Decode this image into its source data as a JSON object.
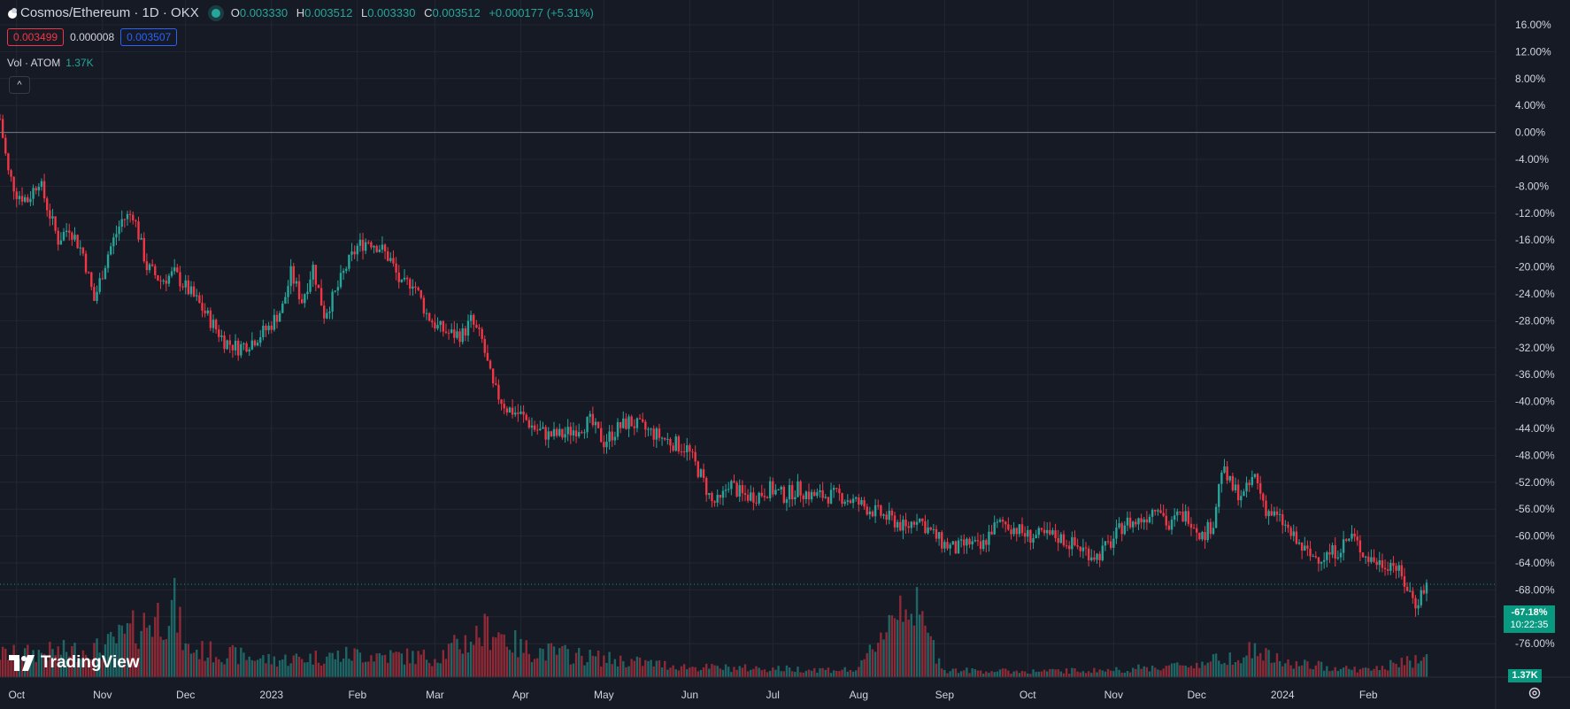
{
  "header": {
    "title": "Cosmos/Ethereum · 1D · OKX",
    "ohlc": [
      {
        "key": "O",
        "value": "0.003330"
      },
      {
        "key": "H",
        "value": "0.003512"
      },
      {
        "key": "L",
        "value": "0.003330"
      },
      {
        "key": "C",
        "value": "0.003512"
      }
    ],
    "change": "+0.000177 (+5.31%)",
    "sell_price": "0.003499",
    "spread": "0.000008",
    "buy_price": "0.003507",
    "volume_label": "Vol · ATOM",
    "volume_value": "1.37K",
    "collapse_symbol": "^"
  },
  "branding": {
    "logo_text": "TradingView"
  },
  "price_tag": {
    "percent": "-67.18%",
    "countdown": "10:22:35"
  },
  "volume_tag": "1.37K",
  "colors": {
    "background": "#161a25",
    "grid": "#232733",
    "up": "#26a69a",
    "down": "#f23645",
    "tag": "#089981"
  },
  "chart_data": {
    "type": "candlestick",
    "y_axis": {
      "scale": "percent",
      "range": [
        -76,
        18
      ],
      "tick_values": [
        16,
        12,
        8,
        4,
        0,
        -4,
        -8,
        -12,
        -16,
        -20,
        -24,
        -28,
        -32,
        -36,
        -40,
        -44,
        -48,
        -52,
        -56,
        -60,
        -64,
        -68,
        -72,
        -76
      ],
      "tick_labels": [
        "16.00%",
        "12.00%",
        "8.00%",
        "4.00%",
        "0.00%",
        "-4.00%",
        "-8.00%",
        "-12.00%",
        "-16.00%",
        "-20.00%",
        "-24.00%",
        "-28.00%",
        "-32.00%",
        "-36.00%",
        "-40.00%",
        "-44.00%",
        "-48.00%",
        "-52.00%",
        "-56.00%",
        "-60.00%",
        "-64.00%",
        "-68.00%",
        "-72.00%",
        "-76.00%"
      ]
    },
    "x_axis": {
      "start": "2022-09-25",
      "end": "2024-02-22",
      "tick_dates": [
        "2022-10-01",
        "2022-11-01",
        "2022-12-01",
        "2023-01-01",
        "2023-02-01",
        "2023-03-01",
        "2023-04-01",
        "2023-05-01",
        "2023-06-01",
        "2023-07-01",
        "2023-08-01",
        "2023-09-01",
        "2023-10-01",
        "2023-11-01",
        "2023-12-01",
        "2024-01-01",
        "2024-02-01"
      ],
      "tick_labels": [
        "Oct",
        "Nov",
        "Dec",
        "2023",
        "Feb",
        "Mar",
        "Apr",
        "May",
        "Jun",
        "Jul",
        "Aug",
        "Sep",
        "Oct",
        "Nov",
        "Dec",
        "2024",
        "Feb"
      ]
    },
    "series": [
      {
        "type": "close",
        "unit": "percent",
        "points": [
          [
            "2022-09-25",
            2
          ],
          [
            "2022-09-28",
            -6
          ],
          [
            "2022-10-01",
            -9
          ],
          [
            "2022-10-05",
            -10
          ],
          [
            "2022-10-09",
            -7
          ],
          [
            "2022-10-12",
            -11
          ],
          [
            "2022-10-16",
            -16
          ],
          [
            "2022-10-20",
            -14
          ],
          [
            "2022-10-25",
            -18
          ],
          [
            "2022-10-29",
            -25
          ],
          [
            "2022-11-03",
            -18
          ],
          [
            "2022-11-08",
            -13
          ],
          [
            "2022-11-12",
            -12
          ],
          [
            "2022-11-17",
            -20
          ],
          [
            "2022-11-22",
            -22
          ],
          [
            "2022-11-27",
            -21
          ],
          [
            "2022-12-01",
            -23
          ],
          [
            "2022-12-05",
            -25
          ],
          [
            "2022-12-10",
            -28
          ],
          [
            "2022-12-15",
            -31
          ],
          [
            "2022-12-20",
            -32
          ],
          [
            "2022-12-25",
            -31
          ],
          [
            "2022-12-31",
            -29
          ],
          [
            "2023-01-05",
            -26
          ],
          [
            "2023-01-08",
            -21
          ],
          [
            "2023-01-12",
            -25
          ],
          [
            "2023-01-16",
            -20
          ],
          [
            "2023-01-20",
            -27
          ],
          [
            "2023-01-24",
            -24
          ],
          [
            "2023-01-28",
            -20
          ],
          [
            "2023-02-01",
            -17
          ],
          [
            "2023-02-05",
            -16
          ],
          [
            "2023-02-09",
            -17
          ],
          [
            "2023-02-13",
            -19
          ],
          [
            "2023-02-17",
            -23
          ],
          [
            "2023-02-21",
            -22
          ],
          [
            "2023-02-26",
            -27
          ],
          [
            "2023-03-02",
            -29
          ],
          [
            "2023-03-07",
            -30
          ],
          [
            "2023-03-11",
            -30
          ],
          [
            "2023-03-14",
            -28
          ],
          [
            "2023-03-18",
            -31
          ],
          [
            "2023-03-22",
            -38
          ],
          [
            "2023-03-27",
            -41
          ],
          [
            "2023-04-01",
            -42
          ],
          [
            "2023-04-06",
            -44
          ],
          [
            "2023-04-11",
            -45
          ],
          [
            "2023-04-16",
            -45
          ],
          [
            "2023-04-21",
            -44
          ],
          [
            "2023-04-26",
            -43
          ],
          [
            "2023-05-01",
            -46
          ],
          [
            "2023-05-06",
            -44
          ],
          [
            "2023-05-10",
            -43
          ],
          [
            "2023-05-15",
            -44
          ],
          [
            "2023-05-20",
            -45
          ],
          [
            "2023-05-25",
            -46
          ],
          [
            "2023-05-31",
            -47
          ],
          [
            "2023-06-05",
            -51
          ],
          [
            "2023-06-09",
            -55
          ],
          [
            "2023-06-12",
            -55
          ],
          [
            "2023-06-15",
            -52
          ],
          [
            "2023-06-20",
            -54
          ],
          [
            "2023-06-25",
            -54
          ],
          [
            "2023-06-30",
            -53
          ],
          [
            "2023-07-05",
            -54
          ],
          [
            "2023-07-10",
            -53
          ],
          [
            "2023-07-15",
            -54
          ],
          [
            "2023-07-20",
            -54
          ],
          [
            "2023-07-25",
            -54
          ],
          [
            "2023-07-31",
            -55
          ],
          [
            "2023-08-05",
            -56
          ],
          [
            "2023-08-10",
            -57
          ],
          [
            "2023-08-15",
            -58
          ],
          [
            "2023-08-18",
            -59
          ],
          [
            "2023-08-22",
            -57
          ],
          [
            "2023-08-26",
            -59
          ],
          [
            "2023-08-31",
            -61
          ],
          [
            "2023-09-05",
            -62
          ],
          [
            "2023-09-10",
            -61
          ],
          [
            "2023-09-14",
            -62
          ],
          [
            "2023-09-18",
            -59
          ],
          [
            "2023-09-22",
            -58
          ],
          [
            "2023-09-27",
            -59
          ],
          [
            "2023-10-01",
            -60
          ],
          [
            "2023-10-06",
            -60
          ],
          [
            "2023-10-11",
            -60
          ],
          [
            "2023-10-16",
            -61
          ],
          [
            "2023-10-21",
            -62
          ],
          [
            "2023-10-26",
            -63
          ],
          [
            "2023-10-31",
            -61
          ],
          [
            "2023-11-05",
            -58
          ],
          [
            "2023-11-09",
            -58
          ],
          [
            "2023-11-13",
            -57
          ],
          [
            "2023-11-17",
            -55
          ],
          [
            "2023-11-21",
            -59
          ],
          [
            "2023-11-24",
            -57
          ],
          [
            "2023-11-28",
            -57
          ],
          [
            "2023-12-03",
            -60
          ],
          [
            "2023-12-07",
            -58
          ],
          [
            "2023-12-10",
            -50
          ],
          [
            "2023-12-14",
            -53
          ],
          [
            "2023-12-18",
            -54
          ],
          [
            "2023-12-22",
            -51
          ],
          [
            "2023-12-26",
            -56
          ],
          [
            "2024-01-01",
            -58
          ],
          [
            "2024-01-06",
            -61
          ],
          [
            "2024-01-11",
            -63
          ],
          [
            "2024-01-16",
            -63
          ],
          [
            "2024-01-21",
            -62
          ],
          [
            "2024-01-26",
            -60
          ],
          [
            "2024-01-31",
            -63
          ],
          [
            "2024-02-05",
            -64
          ],
          [
            "2024-02-10",
            -64
          ],
          [
            "2024-02-14",
            -67
          ],
          [
            "2024-02-18",
            -70
          ],
          [
            "2024-02-22",
            -67.18
          ]
        ]
      },
      {
        "type": "volume",
        "unit": "ATOM",
        "points": [
          [
            "2022-10-01",
            1.6
          ],
          [
            "2022-11-01",
            2.0
          ],
          [
            "2022-11-20",
            4.2
          ],
          [
            "2022-11-27",
            5.0
          ],
          [
            "2022-12-01",
            2.0
          ],
          [
            "2023-01-01",
            1.2
          ],
          [
            "2023-02-01",
            1.6
          ],
          [
            "2023-03-01",
            1.4
          ],
          [
            "2023-03-22",
            3.5
          ],
          [
            "2023-04-01",
            2.0
          ],
          [
            "2023-05-01",
            1.3
          ],
          [
            "2023-06-01",
            0.7
          ],
          [
            "2023-07-01",
            0.6
          ],
          [
            "2023-08-01",
            0.5
          ],
          [
            "2023-08-18",
            6.0
          ],
          [
            "2023-09-01",
            0.5
          ],
          [
            "2023-10-01",
            0.4
          ],
          [
            "2023-11-01",
            0.5
          ],
          [
            "2023-12-01",
            0.9
          ],
          [
            "2023-12-22",
            1.9
          ],
          [
            "2024-01-01",
            1.0
          ],
          [
            "2024-02-01",
            0.5
          ],
          [
            "2024-02-22",
            1.37
          ]
        ]
      }
    ]
  }
}
